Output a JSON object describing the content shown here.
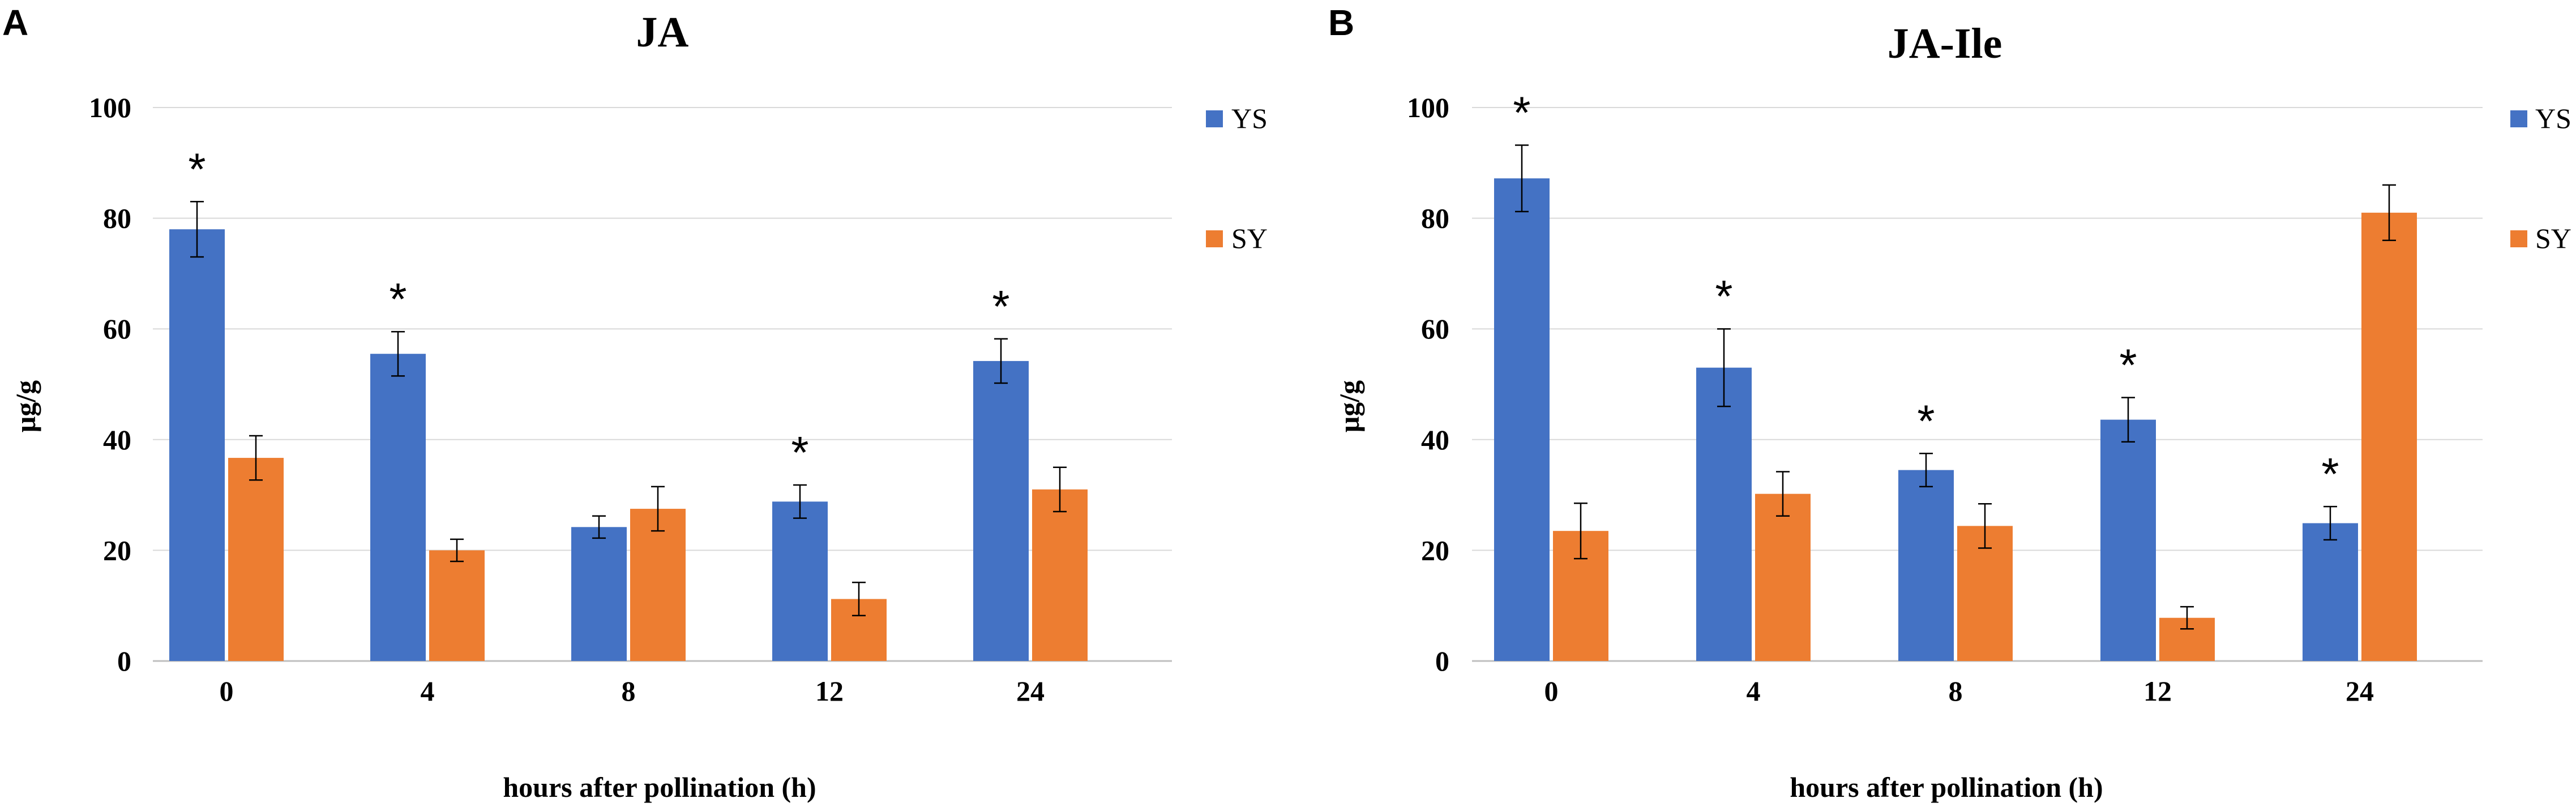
{
  "colors": {
    "YS": "#4472C4",
    "SY": "#ED7D31",
    "grid": "#d9d9d9",
    "axis": "#bfbfbf",
    "error": "#000000"
  },
  "chart_data": [
    {
      "panel": "A",
      "type": "bar",
      "title": "JA",
      "xlabel": "hours after pollination (h)",
      "ylabel": "μg/g",
      "categories": [
        "0",
        "4",
        "8",
        "12",
        "24"
      ],
      "ylim": [
        0,
        100
      ],
      "yticks": [
        "0",
        "20",
        "40",
        "60",
        "80",
        "100"
      ],
      "legend_position": "top-right",
      "series": [
        {
          "name": "YS",
          "color_key": "YS",
          "values": [
            78,
            55.5,
            24.2,
            28.8,
            54.2
          ],
          "errors": [
            5,
            4,
            2,
            3,
            4
          ]
        },
        {
          "name": "SY",
          "color_key": "SY",
          "values": [
            36.7,
            20,
            27.5,
            11.2,
            31
          ],
          "errors": [
            4,
            2,
            4,
            3,
            4
          ]
        }
      ],
      "significance": [
        {
          "category_index": 0,
          "label": "*"
        },
        {
          "category_index": 1,
          "label": "*"
        },
        {
          "category_index": 3,
          "label": "*"
        },
        {
          "category_index": 4,
          "label": "*"
        }
      ]
    },
    {
      "panel": "B",
      "type": "bar",
      "title": "JA-Ile",
      "xlabel": "hours after pollination (h)",
      "ylabel": "μg/g",
      "categories": [
        "0",
        "4",
        "8",
        "12",
        "24"
      ],
      "ylim": [
        0,
        100
      ],
      "yticks": [
        "0",
        "20",
        "40",
        "60",
        "80",
        "100"
      ],
      "legend_position": "top-right",
      "series": [
        {
          "name": "YS",
          "color_key": "YS",
          "values": [
            87.2,
            53,
            34.5,
            43.6,
            24.9
          ],
          "errors": [
            6,
            7,
            3,
            4,
            3
          ]
        },
        {
          "name": "SY",
          "color_key": "SY",
          "values": [
            23.5,
            30.2,
            24.4,
            7.8,
            81
          ],
          "errors": [
            5,
            4,
            4,
            2,
            5
          ]
        }
      ],
      "significance": [
        {
          "category_index": 0,
          "label": "*"
        },
        {
          "category_index": 1,
          "label": "*"
        },
        {
          "category_index": 2,
          "label": "*"
        },
        {
          "category_index": 3,
          "label": "*"
        },
        {
          "category_index": 4,
          "label": "*"
        }
      ]
    }
  ]
}
